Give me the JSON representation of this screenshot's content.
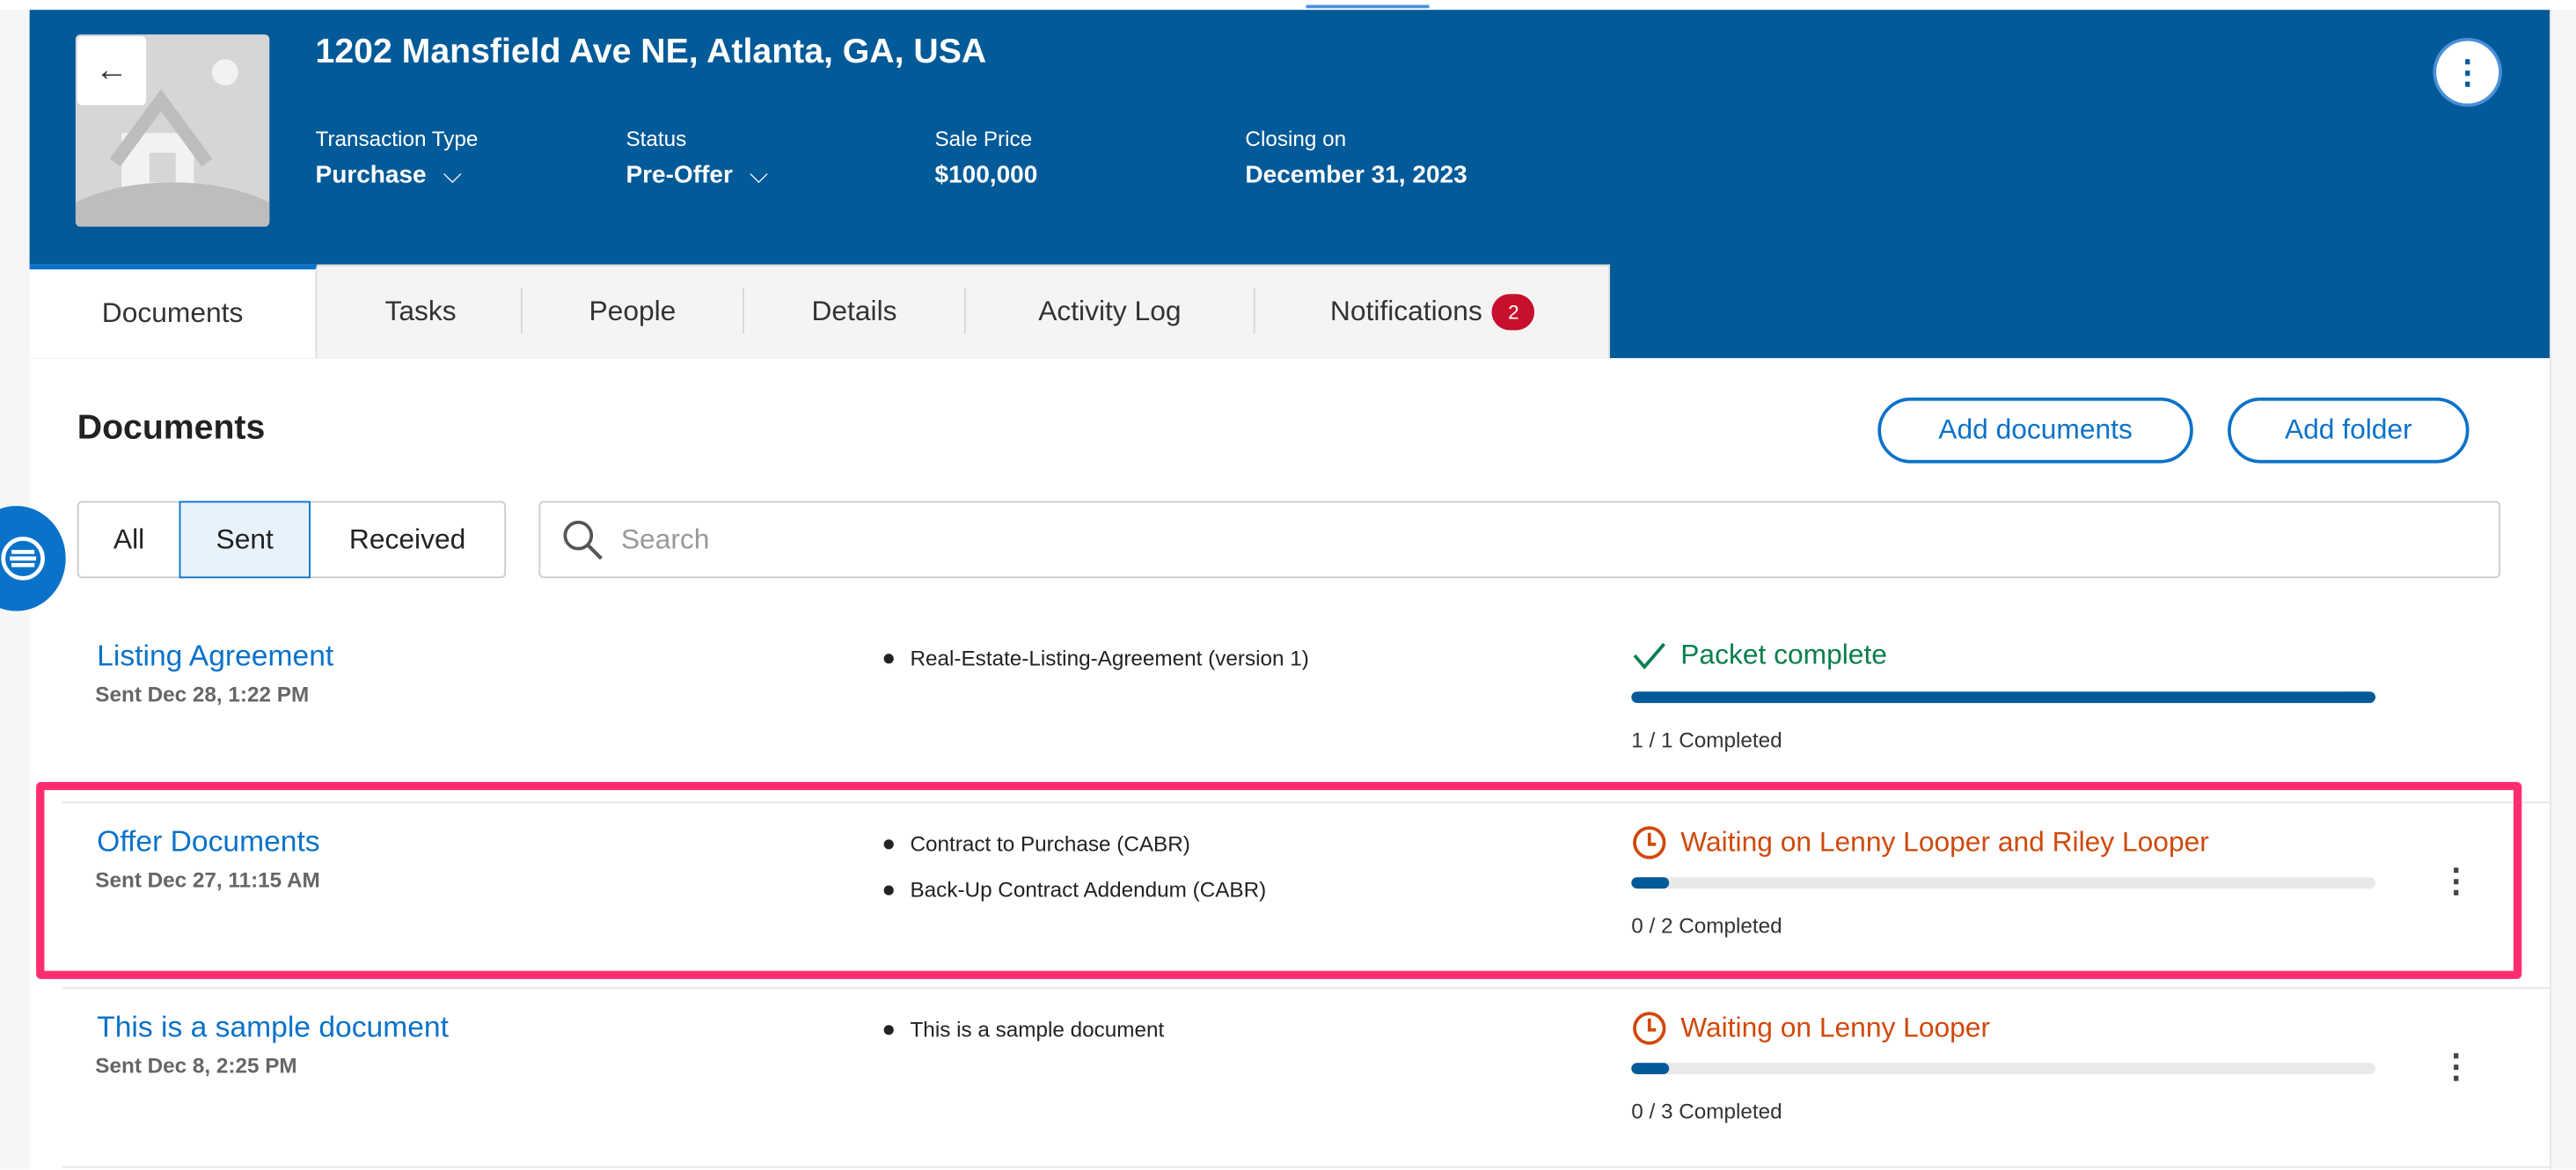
{
  "header": {
    "title": "1202 Mansfield Ave NE, Atlanta, GA, USA",
    "fields": [
      {
        "label": "Transaction Type",
        "value": "Purchase",
        "dropdown": true
      },
      {
        "label": "Status",
        "value": "Pre-Offer",
        "dropdown": true
      },
      {
        "label": "Sale Price",
        "value": "$100,000",
        "dropdown": false
      },
      {
        "label": "Closing on",
        "value": "December 31, 2023",
        "dropdown": false
      }
    ],
    "back_icon": "←",
    "more_icon": "⋮"
  },
  "tabs": [
    {
      "label": "Documents",
      "active": true
    },
    {
      "label": "Tasks"
    },
    {
      "label": "People"
    },
    {
      "label": "Details"
    },
    {
      "label": "Activity Log"
    },
    {
      "label": "Notifications",
      "badge": "2"
    }
  ],
  "main": {
    "heading": "Documents",
    "add_documents": "Add documents",
    "add_folder": "Add folder",
    "filters": [
      "All",
      "Sent",
      "Received"
    ],
    "active_filter": "Sent",
    "search_placeholder": "Search",
    "search_value": ""
  },
  "documents": [
    {
      "name": "Listing Agreement",
      "sent": "Sent Dec 28, 1:22 PM",
      "files": [
        "Real-Estate-Listing-Agreement (version 1)"
      ],
      "status": "Packet complete",
      "status_type": "complete",
      "completed": "1 / 1 Completed",
      "progress": 1.0
    },
    {
      "name": "Offer Documents",
      "sent": "Sent Dec 27, 11:15 AM",
      "files": [
        "Contract to Purchase (CABR)",
        "Back-Up Contract Addendum (CABR)"
      ],
      "status": "Waiting on Lenny Looper and Riley Looper",
      "status_type": "waiting",
      "completed": "0 / 2 Completed",
      "progress": 0.05,
      "highlighted": true
    },
    {
      "name": "This is a sample document",
      "sent": "Sent Dec 8, 2:25 PM",
      "files": [
        "This is a sample document"
      ],
      "status": "Waiting on Lenny Looper",
      "status_type": "waiting",
      "completed": "0 / 3 Completed",
      "progress": 0.05
    }
  ],
  "colors": {
    "header": "#025a98",
    "link": "#0b72c9",
    "complete": "#0a7d4f",
    "waiting": "#d0490b",
    "highlight": "#ff2d6f",
    "badge": "#c8102e"
  }
}
